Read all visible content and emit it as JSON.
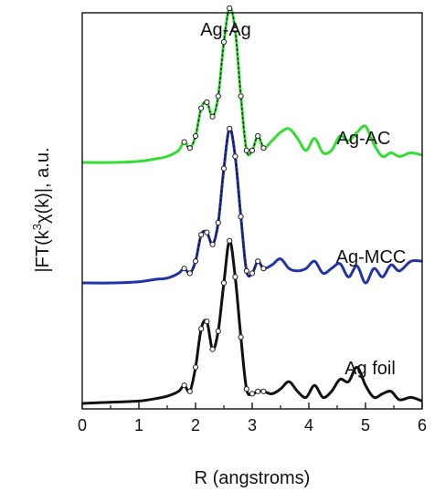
{
  "chart_data": {
    "type": "line",
    "xlabel": "R (angstroms)",
    "ylabel_parts": {
      "pre": "|FT(k",
      "sup": "3",
      "chi": "χ",
      "post": "(k)|, a.u."
    },
    "xlim": [
      0,
      6
    ],
    "xticks": [
      0,
      1,
      2,
      3,
      4,
      5,
      6
    ],
    "xtick_labels": [
      "0",
      "1",
      "2",
      "3",
      "4",
      "5",
      "6"
    ],
    "grid": false,
    "annotations": [
      "Ag-Ag"
    ],
    "series": [
      {
        "name": "Ag-AC",
        "color": "#33dd33",
        "offset": 2.0,
        "x": [
          0.0,
          0.5,
          1.0,
          1.3,
          1.5,
          1.7,
          1.8,
          1.9,
          2.0,
          2.1,
          2.2,
          2.3,
          2.4,
          2.5,
          2.6,
          2.7,
          2.8,
          2.9,
          3.0,
          3.1,
          3.2,
          3.35,
          3.5,
          3.65,
          3.8,
          3.95,
          4.1,
          4.25,
          4.4,
          4.55,
          4.7,
          4.85,
          5.0,
          5.15,
          5.3,
          5.45,
          5.6,
          5.8,
          6.0
        ],
        "y": [
          0.0,
          0.0,
          0.01,
          0.03,
          0.05,
          0.1,
          0.17,
          0.12,
          0.22,
          0.45,
          0.5,
          0.38,
          0.55,
          1.0,
          1.28,
          1.1,
          0.55,
          0.1,
          0.1,
          0.22,
          0.12,
          0.18,
          0.25,
          0.28,
          0.2,
          0.1,
          0.2,
          0.08,
          0.1,
          0.22,
          0.18,
          0.25,
          0.3,
          0.15,
          0.05,
          0.08,
          0.05,
          0.08,
          0.06
        ]
      },
      {
        "name": "Ag-MCC",
        "color": "#2233aa",
        "offset": 1.0,
        "x": [
          0.0,
          0.5,
          1.0,
          1.3,
          1.5,
          1.7,
          1.8,
          1.9,
          2.0,
          2.1,
          2.2,
          2.3,
          2.4,
          2.5,
          2.6,
          2.7,
          2.8,
          2.9,
          3.0,
          3.1,
          3.2,
          3.35,
          3.5,
          3.65,
          3.8,
          3.95,
          4.1,
          4.25,
          4.4,
          4.55,
          4.7,
          4.85,
          5.0,
          5.15,
          5.3,
          5.45,
          5.6,
          5.8,
          6.0
        ],
        "y": [
          0.0,
          0.0,
          0.01,
          0.03,
          0.04,
          0.08,
          0.12,
          0.08,
          0.18,
          0.4,
          0.42,
          0.32,
          0.5,
          0.95,
          1.28,
          1.05,
          0.55,
          0.1,
          0.08,
          0.18,
          0.12,
          0.15,
          0.2,
          0.12,
          0.1,
          0.12,
          0.18,
          0.08,
          0.12,
          0.16,
          0.05,
          0.14,
          0.0,
          0.12,
          0.05,
          0.15,
          0.1,
          0.18,
          0.18
        ]
      },
      {
        "name": "Ag foil",
        "color": "#111111",
        "offset": 0.0,
        "x": [
          0.0,
          0.5,
          1.0,
          1.3,
          1.5,
          1.7,
          1.8,
          1.9,
          2.0,
          2.1,
          2.2,
          2.3,
          2.4,
          2.5,
          2.6,
          2.7,
          2.8,
          2.9,
          3.0,
          3.1,
          3.2,
          3.35,
          3.5,
          3.65,
          3.8,
          3.95,
          4.1,
          4.25,
          4.4,
          4.55,
          4.7,
          4.85,
          5.0,
          5.15,
          5.3,
          5.45,
          5.6,
          5.8,
          6.0
        ],
        "y": [
          0.0,
          0.01,
          0.02,
          0.04,
          0.06,
          0.1,
          0.15,
          0.1,
          0.3,
          0.62,
          0.68,
          0.45,
          0.6,
          1.0,
          1.35,
          1.05,
          0.55,
          0.12,
          0.08,
          0.1,
          0.1,
          0.08,
          0.12,
          0.18,
          0.1,
          0.05,
          0.15,
          0.05,
          0.1,
          0.2,
          0.18,
          0.3,
          0.15,
          0.05,
          0.08,
          0.1,
          0.03,
          0.05,
          0.02
        ]
      }
    ]
  }
}
